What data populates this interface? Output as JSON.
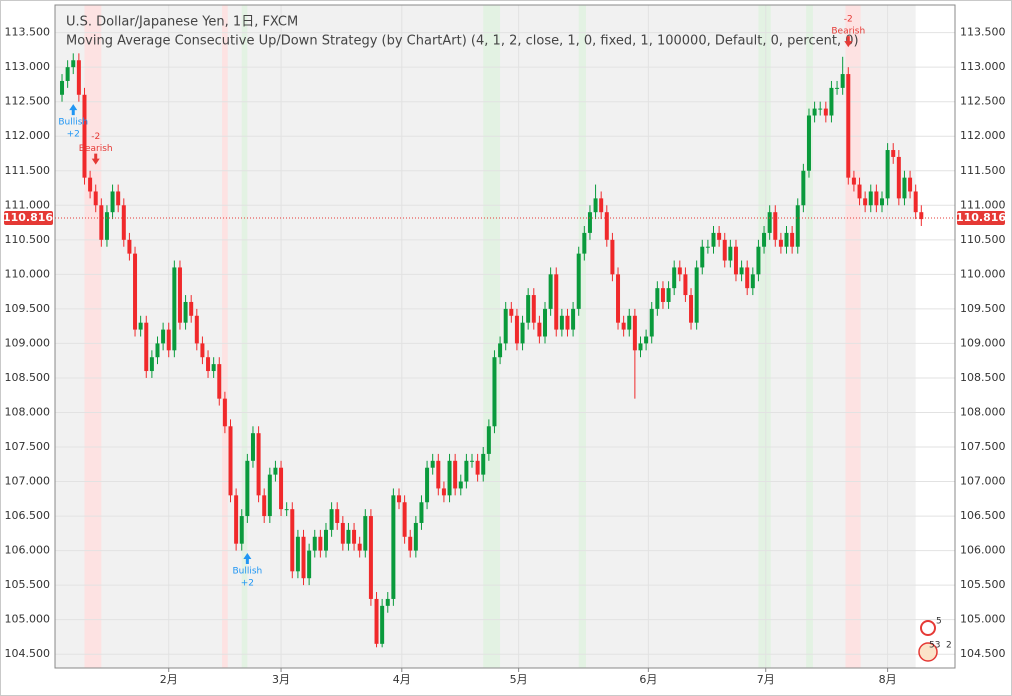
{
  "chart_data": {
    "type": "candlestick",
    "title": "U.S. Dollar/Japanese Yen, 1日, FXCM",
    "subtitle": "Moving Average Consecutive Up/Down Strategy (by ChartArt) (4, 1, 2, close, 1, 0, fixed, 1, 100000, Default, 0, percent, 0)",
    "up_color": "#0a9a3c",
    "down_color": "#f0292b",
    "open": [
      112.6,
      112.8,
      113.0,
      113.1,
      112.6,
      111.4,
      111.2,
      111.0,
      110.5,
      110.9,
      111.2,
      111.0,
      110.5,
      110.3,
      109.2,
      109.3,
      108.6,
      108.8,
      109.0,
      109.2,
      108.9,
      110.1,
      109.3,
      109.6,
      109.4,
      109.0,
      108.8,
      108.6,
      108.7,
      108.2,
      107.8,
      106.8,
      106.1,
      106.5,
      107.3,
      107.7,
      106.8,
      106.5,
      107.1,
      107.2,
      106.6,
      106.6,
      105.7,
      106.2,
      105.6,
      106.0,
      106.2,
      106.0,
      106.3,
      106.6,
      106.4,
      106.1,
      106.3,
      106.1,
      106.0,
      106.5,
      105.3,
      104.65,
      105.2,
      105.3,
      106.8,
      106.7,
      106.2,
      106.0,
      106.4,
      106.7,
      107.2,
      107.3,
      106.9,
      106.8,
      107.3,
      106.9,
      107.0,
      107.3,
      107.3,
      107.1,
      107.4,
      107.8,
      108.8,
      109.0,
      109.5,
      109.4,
      109.0,
      109.3,
      109.7,
      109.3,
      109.1,
      109.5,
      110.0,
      109.2,
      109.4,
      109.2,
      109.5,
      110.3,
      110.6,
      110.9,
      111.1,
      110.9,
      110.5,
      110.0,
      109.3,
      109.2,
      109.4,
      108.9,
      109.0,
      109.1,
      109.5,
      109.8,
      109.6,
      109.8,
      110.1,
      110.0,
      109.7,
      109.3,
      110.1,
      110.4,
      110.4,
      110.6,
      110.5,
      110.2,
      110.4,
      110.0,
      110.1,
      109.8,
      110.0,
      110.4,
      110.6,
      110.9,
      110.5,
      110.4,
      110.6,
      110.4,
      111.0,
      111.5,
      112.3,
      112.4,
      112.4,
      112.3,
      112.7,
      112.7,
      112.9,
      111.4,
      111.3,
      111.1,
      111.0,
      111.2,
      111.0,
      111.1,
      111.8,
      111.7,
      111.1,
      111.4,
      111.2,
      110.9
    ],
    "high": [
      112.9,
      113.1,
      113.2,
      113.2,
      112.7,
      111.5,
      111.3,
      111.1,
      111.0,
      111.3,
      111.3,
      111.1,
      110.6,
      110.4,
      109.4,
      109.4,
      108.9,
      109.1,
      109.3,
      109.3,
      110.2,
      110.2,
      109.7,
      109.7,
      109.5,
      109.1,
      108.9,
      108.8,
      108.8,
      108.3,
      107.9,
      106.9,
      106.6,
      107.4,
      107.8,
      107.8,
      106.9,
      107.2,
      107.3,
      107.3,
      106.7,
      106.7,
      106.3,
      106.3,
      106.1,
      106.3,
      106.3,
      106.4,
      106.7,
      106.7,
      106.5,
      106.4,
      106.4,
      106.2,
      106.6,
      106.6,
      105.4,
      105.3,
      105.4,
      106.9,
      106.9,
      106.8,
      106.3,
      106.5,
      106.8,
      107.3,
      107.4,
      107.4,
      107.0,
      107.4,
      107.4,
      107.1,
      107.4,
      107.4,
      107.4,
      107.5,
      107.9,
      108.9,
      109.1,
      109.6,
      109.6,
      109.5,
      109.4,
      109.8,
      109.8,
      109.4,
      109.6,
      110.1,
      110.1,
      109.5,
      109.5,
      109.6,
      110.4,
      110.7,
      111.0,
      111.3,
      111.2,
      111.0,
      110.6,
      110.1,
      109.4,
      109.5,
      109.5,
      109.1,
      109.2,
      109.6,
      109.9,
      109.9,
      109.9,
      110.2,
      110.2,
      110.1,
      109.8,
      110.2,
      110.5,
      110.5,
      110.7,
      110.7,
      110.6,
      110.5,
      110.5,
      110.2,
      110.2,
      110.1,
      110.5,
      110.7,
      111.0,
      111.0,
      110.6,
      110.7,
      110.7,
      111.1,
      111.6,
      112.4,
      112.5,
      112.5,
      112.5,
      112.8,
      112.8,
      113.15,
      113.0,
      111.5,
      111.4,
      111.2,
      111.3,
      111.3,
      111.2,
      111.9,
      111.9,
      111.8,
      111.5,
      111.5,
      111.3,
      111.0
    ],
    "low": [
      112.5,
      112.7,
      112.9,
      112.5,
      111.3,
      111.1,
      110.9,
      110.4,
      110.4,
      110.8,
      110.9,
      110.4,
      110.2,
      109.1,
      109.1,
      108.5,
      108.5,
      108.7,
      108.9,
      108.8,
      108.8,
      109.2,
      109.2,
      109.3,
      108.9,
      108.7,
      108.5,
      108.5,
      108.1,
      107.7,
      106.7,
      106.0,
      106.0,
      106.4,
      107.2,
      106.7,
      106.4,
      106.4,
      107.0,
      106.5,
      106.5,
      105.6,
      105.6,
      105.5,
      105.5,
      105.9,
      105.9,
      105.9,
      106.2,
      106.3,
      106.0,
      106.0,
      106.0,
      105.9,
      105.9,
      105.2,
      104.6,
      104.6,
      105.1,
      105.2,
      106.6,
      106.1,
      105.9,
      105.9,
      106.3,
      106.6,
      107.1,
      106.8,
      106.7,
      106.7,
      106.8,
      106.8,
      106.9,
      107.2,
      107.0,
      107.0,
      107.3,
      107.7,
      108.7,
      108.9,
      109.3,
      108.9,
      108.9,
      109.2,
      109.2,
      109.0,
      109.0,
      109.4,
      109.1,
      109.1,
      109.1,
      109.1,
      109.4,
      110.2,
      110.5,
      110.8,
      110.8,
      110.4,
      109.9,
      109.2,
      109.1,
      109.1,
      108.2,
      108.8,
      108.9,
      109.0,
      109.4,
      109.5,
      109.5,
      109.7,
      109.9,
      109.6,
      109.2,
      109.2,
      110.0,
      110.3,
      110.3,
      110.4,
      110.1,
      110.1,
      109.9,
      109.9,
      109.7,
      109.7,
      109.9,
      110.3,
      110.5,
      110.4,
      110.3,
      110.3,
      110.3,
      110.3,
      110.9,
      111.4,
      112.2,
      112.3,
      112.2,
      112.2,
      112.6,
      112.6,
      111.3,
      111.2,
      111.0,
      110.9,
      110.9,
      110.9,
      110.9,
      111.0,
      111.6,
      111.0,
      111.0,
      111.1,
      110.8,
      110.7
    ],
    "close": [
      112.8,
      113.0,
      113.1,
      112.6,
      111.4,
      111.2,
      111.0,
      110.5,
      110.9,
      111.2,
      111.0,
      110.5,
      110.3,
      109.2,
      109.3,
      108.6,
      108.8,
      109.0,
      109.2,
      108.9,
      110.1,
      109.3,
      109.6,
      109.4,
      109.0,
      108.8,
      108.6,
      108.7,
      108.2,
      107.8,
      106.8,
      106.1,
      106.5,
      107.3,
      107.7,
      106.8,
      106.5,
      107.1,
      107.2,
      106.6,
      106.6,
      105.7,
      106.2,
      105.6,
      106.0,
      106.2,
      106.0,
      106.3,
      106.6,
      106.4,
      106.1,
      106.3,
      106.1,
      106.0,
      106.5,
      105.3,
      104.65,
      105.2,
      105.3,
      106.8,
      106.7,
      106.2,
      106.0,
      106.4,
      106.7,
      107.2,
      107.3,
      106.9,
      106.8,
      107.3,
      106.9,
      107.0,
      107.3,
      107.3,
      107.1,
      107.4,
      107.8,
      108.8,
      109.0,
      109.5,
      109.4,
      109.0,
      109.3,
      109.7,
      109.3,
      109.1,
      109.5,
      110.0,
      109.2,
      109.4,
      109.2,
      109.5,
      110.3,
      110.6,
      110.9,
      111.1,
      110.9,
      110.5,
      110.0,
      109.3,
      109.2,
      109.4,
      108.9,
      109.0,
      109.1,
      109.5,
      109.8,
      109.6,
      109.8,
      110.1,
      110.0,
      109.7,
      109.3,
      110.1,
      110.4,
      110.4,
      110.6,
      110.5,
      110.2,
      110.4,
      110.0,
      110.1,
      109.8,
      110.0,
      110.4,
      110.6,
      110.9,
      110.5,
      110.4,
      110.6,
      110.4,
      111.0,
      111.5,
      112.3,
      112.4,
      112.4,
      112.3,
      112.7,
      112.7,
      112.9,
      111.4,
      111.3,
      111.1,
      111.0,
      111.2,
      111.0,
      111.1,
      111.8,
      111.7,
      111.1,
      111.4,
      111.2,
      110.9,
      110.8
    ],
    "last_price": 110.816,
    "xlim": [
      -1.25,
      159
    ],
    "xticks": [
      {
        "value": 19,
        "label": "2月"
      },
      {
        "value": 39,
        "label": "3月"
      },
      {
        "value": 60.5,
        "label": "4月"
      },
      {
        "value": 81.3,
        "label": "5月"
      },
      {
        "value": 104.4,
        "label": "6月"
      },
      {
        "value": 125.3,
        "label": "7月"
      },
      {
        "value": 147,
        "label": "8月"
      }
    ],
    "ylim": [
      104.3,
      113.9
    ],
    "yticks": [
      {
        "value": 104.5,
        "label": "104.500"
      },
      {
        "value": 105,
        "label": "105.000"
      },
      {
        "value": 105.5,
        "label": "105.500"
      },
      {
        "value": 106,
        "label": "106.000"
      },
      {
        "value": 106.5,
        "label": "106.500"
      },
      {
        "value": 107,
        "label": "107.000"
      },
      {
        "value": 107.5,
        "label": "107.500"
      },
      {
        "value": 108,
        "label": "108.000"
      },
      {
        "value": 108.5,
        "label": "108.500"
      },
      {
        "value": 109,
        "label": "109.000"
      },
      {
        "value": 109.5,
        "label": "109.500"
      },
      {
        "value": 110,
        "label": "110.000"
      },
      {
        "value": 110.5,
        "label": "110.500"
      },
      {
        "value": 111,
        "label": "111.000"
      },
      {
        "value": 111.5,
        "label": "111.500"
      },
      {
        "value": 112,
        "label": "112.000"
      },
      {
        "value": 112.5,
        "label": "112.500"
      },
      {
        "value": 113,
        "label": "113.000"
      },
      {
        "value": 113.5,
        "label": "113.500"
      }
    ],
    "grid": true,
    "background_band": {
      "from": -1.25,
      "to": 152,
      "color": "#f1f1f1"
    },
    "bands": [
      {
        "from": 4,
        "to": 7,
        "color": "#fde2e2"
      },
      {
        "from": 28.5,
        "to": 29.5,
        "color": "#fde2e2"
      },
      {
        "from": 32,
        "to": 33,
        "color": "#e3f2e3"
      },
      {
        "from": 75,
        "to": 78,
        "color": "#e3f2e3"
      },
      {
        "from": 92,
        "to": 93.3,
        "color": "#e3f2e3"
      },
      {
        "from": 124,
        "to": 126.2,
        "color": "#e3f2e3"
      },
      {
        "from": 132.5,
        "to": 133.7,
        "color": "#e3f2e3"
      },
      {
        "from": 139.5,
        "to": 142.2,
        "color": "#fde2e2"
      }
    ],
    "signals": [
      {
        "index": 2,
        "kind": "bullish",
        "label": "Bullish",
        "sub": "+2"
      },
      {
        "index": 6,
        "kind": "bearish",
        "label": "Bearish",
        "sub": "-2"
      },
      {
        "index": 33,
        "kind": "bullish",
        "label": "Bullish",
        "sub": "+2"
      },
      {
        "index": 140,
        "kind": "bearish",
        "label": "Bearish",
        "sub": "-2"
      }
    ],
    "badges": [
      "5",
      "53",
      "2"
    ]
  }
}
